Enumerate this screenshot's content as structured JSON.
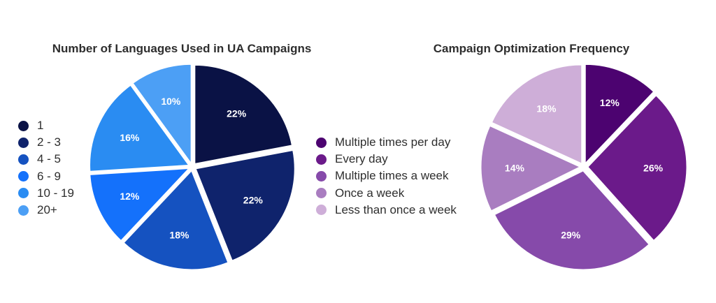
{
  "chart_data": [
    {
      "type": "pie",
      "title": "Number of Languages Used in UA Campaigns",
      "categories": [
        "1",
        "2 - 3",
        "4 - 5",
        "6 - 9",
        "10 - 19",
        "20+"
      ],
      "values": [
        22,
        22,
        18,
        12,
        16,
        10
      ],
      "labels": [
        "22%",
        "22%",
        "18%",
        "12%",
        "16%",
        "10%"
      ],
      "colors": [
        "#0a1245",
        "#0f236c",
        "#1552c0",
        "#1471fb",
        "#2a8cf2",
        "#4c9ff5"
      ],
      "legend_position": "left",
      "start": "top, clockwise"
    },
    {
      "type": "pie",
      "title": "Campaign Optimization Frequency",
      "categories": [
        "Multiple times per day",
        "Every day",
        "Multiple times a week",
        "Once a week",
        "Less than once a week"
      ],
      "values": [
        12,
        26,
        29,
        14,
        18
      ],
      "labels": [
        "12%",
        "26%",
        "29%",
        "14%",
        "18%"
      ],
      "colors": [
        "#4c0370",
        "#6b1a8a",
        "#864aaa",
        "#a97dc0",
        "#ceaed8"
      ],
      "legend_position": "left",
      "start": "top, clockwise"
    }
  ]
}
